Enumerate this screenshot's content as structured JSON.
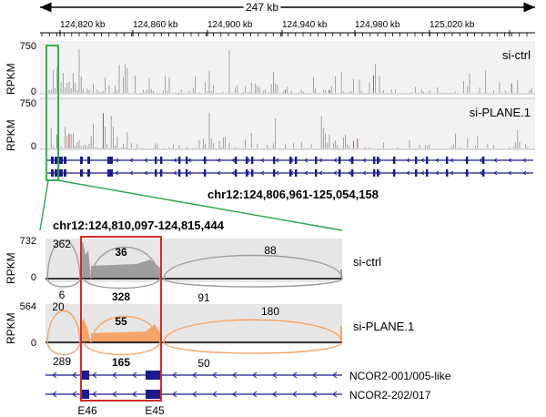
{
  "region": {
    "width_label": "247 kb",
    "ticks": [
      "124,820 kb",
      "124,860 kb",
      "124,900 kb",
      "124,940 kb",
      "124,980 kb",
      "125,020 kb"
    ],
    "locus": "chr12:124,806,961-125,054,158"
  },
  "top_tracks": [
    {
      "name": "si-ctrl",
      "ylabel": "RPKM",
      "ymax": "750",
      "ymin": "0"
    },
    {
      "name": "si-PLANE.1",
      "ylabel": "RPKM",
      "ymax": "750",
      "ymin": "0"
    }
  ],
  "zoom": {
    "locus": "chr12:124,810,097-124,815,444",
    "tracks": [
      {
        "name": "si-ctrl",
        "ylabel": "RPKM",
        "ymax": "732",
        "ymin": "0",
        "color": "#9e9e9e",
        "junctions_above": [
          "362",
          "36",
          "88"
        ],
        "junctions_below": [
          "6",
          "328",
          "91"
        ]
      },
      {
        "name": "si-PLANE.1",
        "ylabel": "RPKM",
        "ymax": "564",
        "ymin": "0",
        "color": "#f4a66a",
        "junctions_above": [
          "20",
          "55",
          "180"
        ],
        "junctions_below": [
          "289",
          "165",
          "50"
        ]
      }
    ],
    "transcripts": [
      "NCOR2-001/005-like",
      "NCOR2-202/017"
    ],
    "exons": [
      "E46",
      "E45"
    ]
  },
  "colors": {
    "gene": "#1a1a8c",
    "zoom_box": "#2aa64a",
    "highlight": "#d42a2a"
  }
}
